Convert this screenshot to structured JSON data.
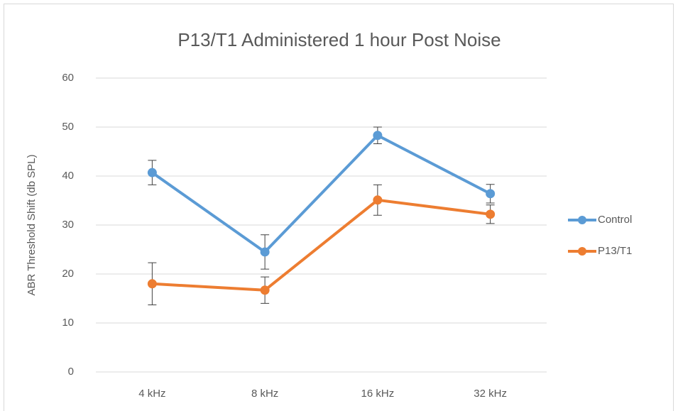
{
  "chart_data": {
    "type": "line",
    "title": "P13/T1 Administered 1 hour Post Noise",
    "y_label": "ABR Threshold Shift (db SPL)",
    "categories": [
      "4 kHz",
      "8 kHz",
      "16 kHz",
      "32 kHz"
    ],
    "series": [
      {
        "name": "Control",
        "color": "#5b9bd5",
        "values": [
          40.7,
          24.5,
          48.3,
          36.4
        ],
        "errors": [
          2.5,
          3.5,
          1.7,
          1.9
        ]
      },
      {
        "name": "P13/T1",
        "color": "#ed7d31",
        "values": [
          18,
          16.7,
          35.1,
          32.2
        ],
        "errors": [
          4.3,
          2.7,
          3.1,
          1.9
        ]
      }
    ],
    "ylim": [
      0,
      60
    ],
    "yticks": [
      0,
      10,
      20,
      30,
      40,
      50,
      60
    ],
    "grid": true,
    "legend": "right"
  }
}
